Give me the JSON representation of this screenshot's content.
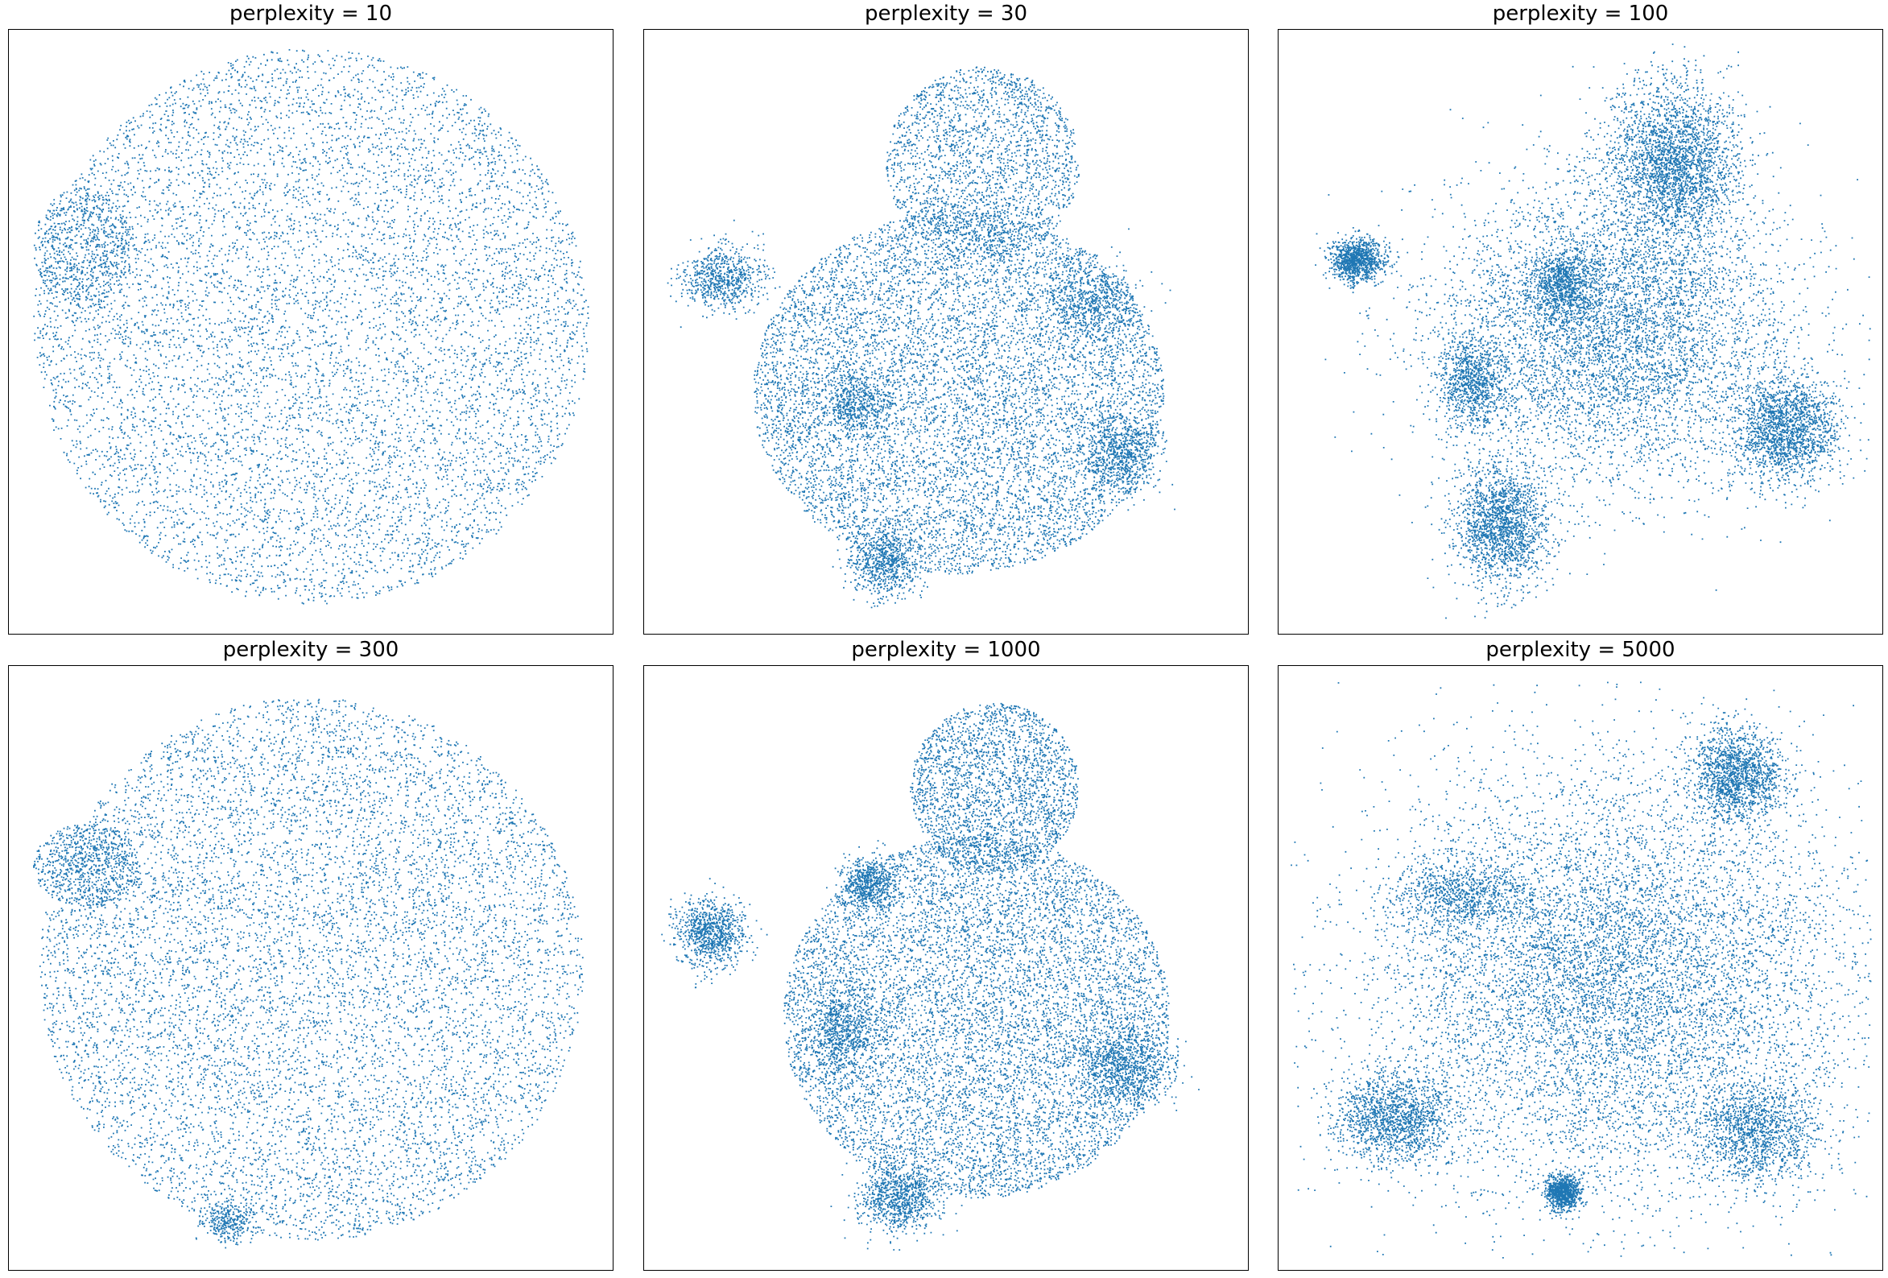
{
  "colors": {
    "point": "#1f77b4",
    "frame": "#000000",
    "background": "#ffffff"
  },
  "chart_data": [
    {
      "type": "scatter",
      "title": "perplexity = 10",
      "xaxis_ticks": "hidden",
      "yaxis_ticks": "hidden",
      "xlim": [
        0,
        1
      ],
      "ylim": [
        0,
        1
      ],
      "point_count": 9000,
      "clusters": [
        {
          "cx": 0.5,
          "cy": 0.51,
          "rx": 0.46,
          "ry": 0.46,
          "weight": 0.93,
          "mode": "uniform"
        },
        {
          "cx": 0.12,
          "cy": 0.64,
          "rx": 0.08,
          "ry": 0.1,
          "weight": 0.07,
          "mode": "uniform"
        }
      ]
    },
    {
      "type": "scatter",
      "title": "perplexity = 30",
      "xaxis_ticks": "hidden",
      "yaxis_ticks": "hidden",
      "xlim": [
        0,
        1
      ],
      "ylim": [
        0,
        1
      ],
      "point_count": 14000,
      "clusters": [
        {
          "cx": 0.52,
          "cy": 0.4,
          "rx": 0.34,
          "ry": 0.3,
          "weight": 0.62,
          "mode": "uniform"
        },
        {
          "cx": 0.56,
          "cy": 0.78,
          "rx": 0.16,
          "ry": 0.16,
          "weight": 0.16,
          "mode": "uniform"
        },
        {
          "cx": 0.13,
          "cy": 0.59,
          "rx": 0.06,
          "ry": 0.05,
          "weight": 0.05,
          "mode": "gauss"
        },
        {
          "cx": 0.4,
          "cy": 0.12,
          "rx": 0.05,
          "ry": 0.05,
          "weight": 0.05,
          "mode": "gauss"
        },
        {
          "cx": 0.79,
          "cy": 0.3,
          "rx": 0.06,
          "ry": 0.06,
          "weight": 0.05,
          "mode": "gauss"
        },
        {
          "cx": 0.74,
          "cy": 0.55,
          "rx": 0.07,
          "ry": 0.06,
          "weight": 0.04,
          "mode": "gauss"
        },
        {
          "cx": 0.35,
          "cy": 0.38,
          "rx": 0.05,
          "ry": 0.05,
          "weight": 0.03,
          "mode": "gauss"
        }
      ]
    },
    {
      "type": "scatter",
      "title": "perplexity = 100",
      "xaxis_ticks": "hidden",
      "yaxis_ticks": "hidden",
      "xlim": [
        0,
        1
      ],
      "ylim": [
        0,
        1
      ],
      "point_count": 15000,
      "clusters": [
        {
          "cx": 0.55,
          "cy": 0.5,
          "rx": 0.26,
          "ry": 0.22,
          "weight": 0.4,
          "mode": "gauss"
        },
        {
          "cx": 0.65,
          "cy": 0.78,
          "rx": 0.1,
          "ry": 0.12,
          "weight": 0.18,
          "mode": "gauss"
        },
        {
          "cx": 0.37,
          "cy": 0.18,
          "rx": 0.07,
          "ry": 0.09,
          "weight": 0.12,
          "mode": "gauss"
        },
        {
          "cx": 0.84,
          "cy": 0.34,
          "rx": 0.08,
          "ry": 0.08,
          "weight": 0.12,
          "mode": "gauss"
        },
        {
          "cx": 0.13,
          "cy": 0.62,
          "rx": 0.04,
          "ry": 0.03,
          "weight": 0.07,
          "mode": "gauss"
        },
        {
          "cx": 0.32,
          "cy": 0.42,
          "rx": 0.05,
          "ry": 0.07,
          "weight": 0.06,
          "mode": "gauss"
        },
        {
          "cx": 0.47,
          "cy": 0.58,
          "rx": 0.05,
          "ry": 0.05,
          "weight": 0.05,
          "mode": "gauss"
        }
      ]
    },
    {
      "type": "scatter",
      "title": "perplexity = 300",
      "xaxis_ticks": "hidden",
      "yaxis_ticks": "hidden",
      "xlim": [
        0,
        1
      ],
      "ylim": [
        0,
        1
      ],
      "point_count": 10000,
      "clusters": [
        {
          "cx": 0.5,
          "cy": 0.5,
          "rx": 0.45,
          "ry": 0.45,
          "weight": 0.9,
          "mode": "uniform"
        },
        {
          "cx": 0.13,
          "cy": 0.67,
          "rx": 0.09,
          "ry": 0.07,
          "weight": 0.07,
          "mode": "uniform"
        },
        {
          "cx": 0.36,
          "cy": 0.08,
          "rx": 0.04,
          "ry": 0.03,
          "weight": 0.03,
          "mode": "gauss"
        }
      ]
    },
    {
      "type": "scatter",
      "title": "perplexity = 1000",
      "xaxis_ticks": "hidden",
      "yaxis_ticks": "hidden",
      "xlim": [
        0,
        1
      ],
      "ylim": [
        0,
        1
      ],
      "point_count": 15000,
      "clusters": [
        {
          "cx": 0.55,
          "cy": 0.42,
          "rx": 0.32,
          "ry": 0.3,
          "weight": 0.58,
          "mode": "uniform"
        },
        {
          "cx": 0.58,
          "cy": 0.8,
          "rx": 0.14,
          "ry": 0.14,
          "weight": 0.16,
          "mode": "uniform"
        },
        {
          "cx": 0.11,
          "cy": 0.56,
          "rx": 0.05,
          "ry": 0.05,
          "weight": 0.06,
          "mode": "gauss"
        },
        {
          "cx": 0.42,
          "cy": 0.12,
          "rx": 0.06,
          "ry": 0.05,
          "weight": 0.06,
          "mode": "gauss"
        },
        {
          "cx": 0.8,
          "cy": 0.34,
          "rx": 0.07,
          "ry": 0.06,
          "weight": 0.06,
          "mode": "gauss"
        },
        {
          "cx": 0.33,
          "cy": 0.4,
          "rx": 0.05,
          "ry": 0.07,
          "weight": 0.04,
          "mode": "gauss"
        },
        {
          "cx": 0.37,
          "cy": 0.64,
          "rx": 0.04,
          "ry": 0.04,
          "weight": 0.04,
          "mode": "gauss"
        }
      ]
    },
    {
      "type": "scatter",
      "title": "perplexity = 5000",
      "xaxis_ticks": "hidden",
      "yaxis_ticks": "hidden",
      "xlim": [
        0,
        1
      ],
      "ylim": [
        0,
        1
      ],
      "point_count": 15000,
      "clusters": [
        {
          "cx": 0.55,
          "cy": 0.48,
          "rx": 0.36,
          "ry": 0.32,
          "weight": 0.6,
          "mode": "gauss"
        },
        {
          "cx": 0.76,
          "cy": 0.82,
          "rx": 0.07,
          "ry": 0.07,
          "weight": 0.1,
          "mode": "gauss"
        },
        {
          "cx": 0.19,
          "cy": 0.25,
          "rx": 0.09,
          "ry": 0.07,
          "weight": 0.1,
          "mode": "gauss"
        },
        {
          "cx": 0.79,
          "cy": 0.23,
          "rx": 0.09,
          "ry": 0.08,
          "weight": 0.09,
          "mode": "gauss"
        },
        {
          "cx": 0.47,
          "cy": 0.13,
          "rx": 0.025,
          "ry": 0.025,
          "weight": 0.06,
          "mode": "gauss"
        },
        {
          "cx": 0.3,
          "cy": 0.62,
          "rx": 0.1,
          "ry": 0.05,
          "weight": 0.05,
          "mode": "gauss"
        }
      ]
    }
  ]
}
